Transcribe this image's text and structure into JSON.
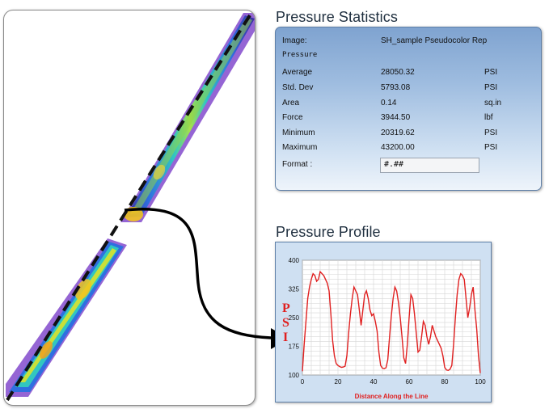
{
  "stats": {
    "title": "Pressure Statistics",
    "image_label": "Image:",
    "image_value": "SH_sample Pseudocolor Rep",
    "subheading": "Pressure",
    "rows": [
      {
        "label": "Average",
        "value": "28050.32",
        "unit": "PSI"
      },
      {
        "label": "Std. Dev",
        "value": "5793.08",
        "unit": "PSI"
      },
      {
        "label": "Area",
        "value": "0.14",
        "unit": "sq.in"
      },
      {
        "label": "Force",
        "value": "3944.50",
        "unit": "lbf"
      },
      {
        "label": "Minimum",
        "value": "20319.62",
        "unit": "PSI"
      },
      {
        "label": "Maximum",
        "value": "43200.00",
        "unit": "PSI"
      }
    ],
    "format_label": "Format  :",
    "format_value": "#.##"
  },
  "profile": {
    "title": "Pressure Profile",
    "ylabel_letters": [
      "P",
      "S",
      "I"
    ],
    "xlabel": "Distance Along the Line",
    "line_color": "#e02020"
  },
  "chart_data": {
    "type": "line",
    "title": "",
    "xlabel": "Distance Along the Line",
    "ylabel": "PSI",
    "xlim": [
      0,
      100
    ],
    "ylim": [
      100,
      400
    ],
    "xticks": [
      "0",
      "20",
      "40",
      "60",
      "80",
      "100"
    ],
    "yticks": [
      "100",
      "175",
      "250",
      "325",
      "400"
    ],
    "grid": true,
    "series": [
      {
        "x": [
          0,
          1,
          2,
          3,
          4,
          5,
          6,
          7,
          8,
          9,
          10,
          12,
          14,
          15,
          16,
          17,
          18,
          19,
          20,
          21,
          22,
          23,
          24,
          25,
          26,
          27,
          28,
          29,
          30,
          31,
          32,
          33,
          34,
          35,
          36,
          37,
          38,
          39,
          40,
          41,
          42,
          43,
          44,
          45,
          46,
          47,
          48,
          49,
          50,
          51,
          52,
          53,
          54,
          55,
          56,
          57,
          58,
          59,
          60,
          61,
          62,
          63,
          64,
          65,
          66,
          67,
          68,
          69,
          70,
          71,
          72,
          73,
          74,
          75,
          76,
          77,
          78,
          79,
          80,
          81,
          82,
          83,
          84,
          85,
          86,
          87,
          88,
          89,
          90,
          91,
          92,
          93,
          94,
          95,
          96,
          97,
          98,
          99,
          100
        ],
        "y": [
          110,
          180,
          240,
          300,
          330,
          350,
          365,
          360,
          345,
          350,
          370,
          360,
          340,
          320,
          260,
          190,
          150,
          130,
          125,
          122,
          120,
          121,
          123,
          150,
          210,
          260,
          300,
          330,
          320,
          310,
          270,
          230,
          270,
          310,
          320,
          300,
          270,
          255,
          260,
          240,
          215,
          160,
          125,
          118,
          117,
          119,
          140,
          200,
          255,
          300,
          330,
          320,
          290,
          250,
          200,
          145,
          130,
          180,
          250,
          310,
          300,
          260,
          210,
          160,
          165,
          200,
          240,
          230,
          200,
          180,
          200,
          230,
          215,
          200,
          190,
          180,
          170,
          150,
          120,
          113,
          112,
          115,
          125,
          180,
          250,
          310,
          350,
          365,
          360,
          350,
          300,
          250,
          275,
          310,
          330,
          270,
          220,
          150,
          105
        ]
      }
    ]
  }
}
